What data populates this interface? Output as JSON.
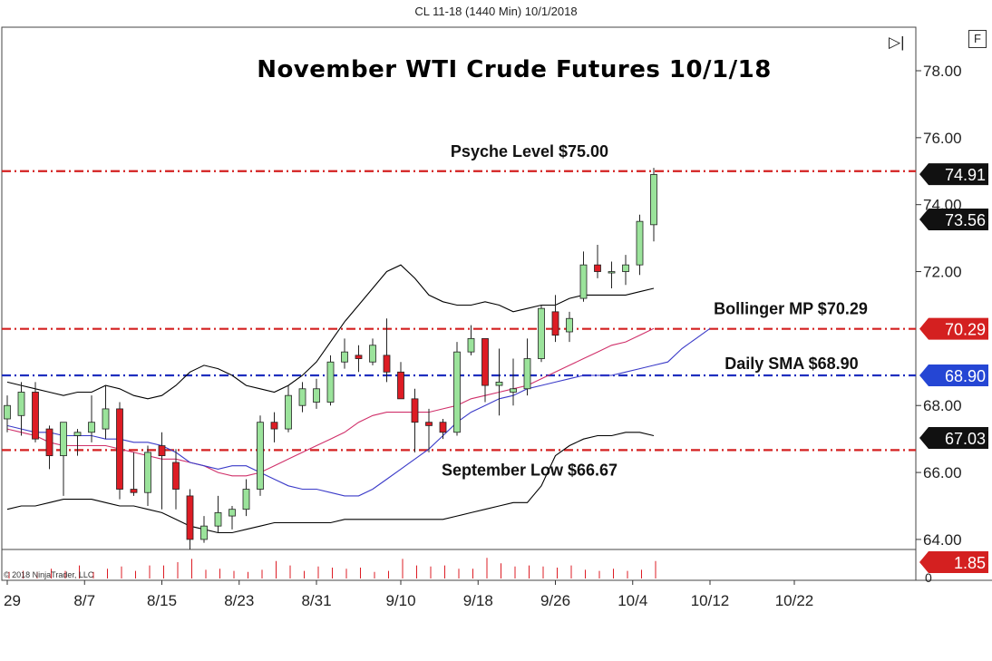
{
  "header": {
    "instrument": "CL 11-18 (1440 Min)  10/1/2018"
  },
  "title": "November WTI Crude Futures 10/1/18",
  "controls": {
    "f_label": "F",
    "play_glyph": "▷|"
  },
  "copyright": "© 2018 NinjaTrader, LLC",
  "colors": {
    "up_candle": "#9be39b",
    "down_candle": "#dd1c24",
    "resistance": "#d42020",
    "sma_line": "#1f2fbf",
    "bollinger_band": "#000000",
    "bollinger_mid": "#d0306a",
    "sma_curve": "#3a3ac8",
    "tag_dark": "#111111",
    "tag_red": "#d42020",
    "tag_blue": "#2546d4"
  },
  "chart_data": {
    "type": "candlestick",
    "y_axis": {
      "ylim": [
        63.7,
        79.3
      ],
      "ticks": [
        "78.00",
        "76.00",
        "74.00",
        "72.00",
        "68.00",
        "66.00",
        "64.00"
      ],
      "hidden_ticks": [
        70.0
      ]
    },
    "x_axis": {
      "ticks": [
        "29",
        "8/7",
        "8/15",
        "8/23",
        "8/31",
        "9/10",
        "9/18",
        "9/26",
        "10/4",
        "10/12",
        "10/22"
      ],
      "tick_index": [
        0,
        5.5,
        11,
        16.5,
        22,
        28,
        33.5,
        39,
        44.5,
        50,
        56
      ]
    },
    "candles": [
      {
        "o": 67.6,
        "h": 68.3,
        "l": 67.2,
        "c": 68.0
      },
      {
        "o": 67.7,
        "h": 68.7,
        "l": 67.1,
        "c": 68.4
      },
      {
        "o": 68.4,
        "h": 68.7,
        "l": 66.9,
        "c": 67.0
      },
      {
        "o": 67.3,
        "h": 67.4,
        "l": 66.1,
        "c": 66.5
      },
      {
        "o": 66.5,
        "h": 67.5,
        "l": 65.3,
        "c": 67.5
      },
      {
        "o": 67.1,
        "h": 67.3,
        "l": 66.5,
        "c": 67.2
      },
      {
        "o": 67.2,
        "h": 68.3,
        "l": 66.9,
        "c": 67.5
      },
      {
        "o": 67.3,
        "h": 68.6,
        "l": 67.0,
        "c": 67.9
      },
      {
        "o": 67.9,
        "h": 68.1,
        "l": 65.2,
        "c": 65.5
      },
      {
        "o": 65.5,
        "h": 66.6,
        "l": 65.3,
        "c": 65.4
      },
      {
        "o": 65.4,
        "h": 66.8,
        "l": 65.0,
        "c": 66.6
      },
      {
        "o": 66.8,
        "h": 67.2,
        "l": 64.9,
        "c": 66.5
      },
      {
        "o": 66.3,
        "h": 66.7,
        "l": 64.9,
        "c": 65.5
      },
      {
        "o": 65.3,
        "h": 65.5,
        "l": 63.7,
        "c": 64.0
      },
      {
        "o": 64.0,
        "h": 64.7,
        "l": 63.9,
        "c": 64.4
      },
      {
        "o": 64.4,
        "h": 65.3,
        "l": 64.2,
        "c": 64.8
      },
      {
        "o": 64.7,
        "h": 65.0,
        "l": 64.3,
        "c": 64.9
      },
      {
        "o": 64.9,
        "h": 65.8,
        "l": 64.7,
        "c": 65.5
      },
      {
        "o": 65.5,
        "h": 67.7,
        "l": 65.3,
        "c": 67.5
      },
      {
        "o": 67.5,
        "h": 67.8,
        "l": 66.9,
        "c": 67.3
      },
      {
        "o": 67.3,
        "h": 68.6,
        "l": 67.2,
        "c": 68.3
      },
      {
        "o": 68.0,
        "h": 68.7,
        "l": 67.8,
        "c": 68.5
      },
      {
        "o": 68.1,
        "h": 68.8,
        "l": 67.9,
        "c": 68.5
      },
      {
        "o": 68.1,
        "h": 69.5,
        "l": 68.0,
        "c": 69.3
      },
      {
        "o": 69.3,
        "h": 70.0,
        "l": 69.1,
        "c": 69.6
      },
      {
        "o": 69.5,
        "h": 69.8,
        "l": 69.0,
        "c": 69.4
      },
      {
        "o": 69.3,
        "h": 70.0,
        "l": 69.2,
        "c": 69.8
      },
      {
        "o": 69.5,
        "h": 70.6,
        "l": 68.7,
        "c": 69.0
      },
      {
        "o": 69.0,
        "h": 69.3,
        "l": 68.2,
        "c": 68.2
      },
      {
        "o": 68.2,
        "h": 68.5,
        "l": 66.6,
        "c": 67.5
      },
      {
        "o": 67.5,
        "h": 67.9,
        "l": 66.6,
        "c": 67.4
      },
      {
        "o": 67.5,
        "h": 67.6,
        "l": 67.0,
        "c": 67.2
      },
      {
        "o": 67.2,
        "h": 69.9,
        "l": 67.1,
        "c": 69.6
      },
      {
        "o": 69.6,
        "h": 70.4,
        "l": 69.5,
        "c": 70.0
      },
      {
        "o": 70.0,
        "h": 70.0,
        "l": 68.1,
        "c": 68.6
      },
      {
        "o": 68.6,
        "h": 69.7,
        "l": 67.7,
        "c": 68.7
      },
      {
        "o": 68.4,
        "h": 69.4,
        "l": 68.0,
        "c": 68.5
      },
      {
        "o": 68.5,
        "h": 70.0,
        "l": 68.3,
        "c": 69.4
      },
      {
        "o": 69.4,
        "h": 71.0,
        "l": 69.3,
        "c": 70.9
      },
      {
        "o": 70.8,
        "h": 71.3,
        "l": 69.9,
        "c": 70.1
      },
      {
        "o": 70.2,
        "h": 70.8,
        "l": 69.9,
        "c": 70.6
      },
      {
        "o": 71.2,
        "h": 72.6,
        "l": 71.1,
        "c": 72.2
      },
      {
        "o": 72.2,
        "h": 72.8,
        "l": 71.8,
        "c": 72.0
      },
      {
        "o": 72.0,
        "h": 72.3,
        "l": 71.5,
        "c": 72.0
      },
      {
        "o": 72.0,
        "h": 72.5,
        "l": 71.6,
        "c": 72.2
      },
      {
        "o": 72.2,
        "h": 73.7,
        "l": 71.9,
        "c": 73.5
      },
      {
        "o": 73.4,
        "h": 75.1,
        "l": 72.9,
        "c": 74.9
      }
    ],
    "bollinger_upper": [
      68.7,
      68.6,
      68.5,
      68.4,
      68.3,
      68.4,
      68.4,
      68.6,
      68.5,
      68.3,
      68.2,
      68.3,
      68.6,
      69.0,
      69.2,
      69.1,
      68.9,
      68.6,
      68.5,
      68.4,
      68.6,
      68.9,
      69.3,
      69.9,
      70.5,
      71.0,
      71.5,
      72.0,
      72.2,
      71.8,
      71.3,
      71.1,
      71.0,
      71.0,
      71.1,
      71.0,
      70.8,
      70.9,
      71.0,
      71.0,
      71.2,
      71.3,
      71.3,
      71.3,
      71.3,
      71.4,
      71.5
    ],
    "bollinger_mid": [
      67.3,
      67.2,
      67.1,
      66.9,
      66.8,
      66.8,
      66.8,
      66.8,
      66.7,
      66.6,
      66.5,
      66.4,
      66.4,
      66.3,
      66.2,
      66.0,
      65.9,
      65.9,
      66.0,
      66.2,
      66.4,
      66.6,
      66.8,
      67.0,
      67.2,
      67.5,
      67.7,
      67.8,
      67.8,
      67.8,
      67.8,
      67.9,
      68.0,
      68.2,
      68.3,
      68.4,
      68.5,
      68.6,
      68.8,
      69.0,
      69.2,
      69.4,
      69.6,
      69.8,
      69.9,
      70.1,
      70.3
    ],
    "bollinger_lower": [
      64.9,
      65.0,
      65.0,
      65.1,
      65.2,
      65.2,
      65.2,
      65.1,
      65.0,
      65.0,
      64.9,
      64.8,
      64.6,
      64.4,
      64.3,
      64.2,
      64.2,
      64.3,
      64.4,
      64.5,
      64.5,
      64.5,
      64.5,
      64.5,
      64.6,
      64.6,
      64.6,
      64.6,
      64.6,
      64.6,
      64.6,
      64.6,
      64.7,
      64.8,
      64.9,
      65.0,
      65.1,
      65.1,
      65.6,
      66.5,
      66.8,
      67.0,
      67.1,
      67.1,
      67.2,
      67.2,
      67.1
    ],
    "sma": [
      67.4,
      67.3,
      67.2,
      67.2,
      67.1,
      67.1,
      67.1,
      67.0,
      67.0,
      66.9,
      66.9,
      66.8,
      66.6,
      66.3,
      66.2,
      66.1,
      66.2,
      66.2,
      66.0,
      65.8,
      65.6,
      65.5,
      65.5,
      65.4,
      65.3,
      65.3,
      65.5,
      65.8,
      66.1,
      66.4,
      66.7,
      67.1,
      67.5,
      67.8,
      68.0,
      68.2,
      68.3,
      68.5,
      68.6,
      68.7,
      68.8,
      68.9,
      68.9,
      68.9,
      69.0,
      69.1,
      69.2,
      69.3,
      69.7,
      70.0,
      70.3
    ],
    "levels": [
      {
        "label": "Psyche Level $75.00",
        "value": 75.0,
        "style": "resistance"
      },
      {
        "label": "Bollinger MP $70.29",
        "value": 70.29,
        "style": "resistance"
      },
      {
        "label": "Daily SMA $68.90",
        "value": 68.9,
        "style": "sma_line"
      },
      {
        "label": "September Low $66.67",
        "value": 66.67,
        "style": "resistance"
      }
    ],
    "price_tags": [
      {
        "text": "74.91",
        "value": 74.91,
        "style": "tag_dark"
      },
      {
        "text": "73.56",
        "value": 73.56,
        "style": "tag_dark"
      },
      {
        "text": "70.29",
        "value": 70.29,
        "style": "tag_red"
      },
      {
        "text": "68.90",
        "value": 68.9,
        "style": "tag_blue"
      },
      {
        "text": "67.03",
        "value": 67.03,
        "style": "tag_dark"
      }
    ],
    "volume": {
      "tag": "1.85",
      "axis_label": "0",
      "bars": [
        0.3,
        0.35,
        0.3,
        0.45,
        0.35,
        0.6,
        0.3,
        0.45,
        0.55,
        0.35,
        0.6,
        0.6,
        0.75,
        0.9,
        0.4,
        0.45,
        0.35,
        0.3,
        0.4,
        0.8,
        0.6,
        0.35,
        0.55,
        0.5,
        0.45,
        0.5,
        0.3,
        0.35,
        0.9,
        0.6,
        0.55,
        0.6,
        0.45,
        0.45,
        0.95,
        0.7,
        0.55,
        0.6,
        0.55,
        0.5,
        0.6,
        0.4,
        0.35,
        0.45,
        0.35,
        0.4,
        0.8
      ]
    }
  }
}
